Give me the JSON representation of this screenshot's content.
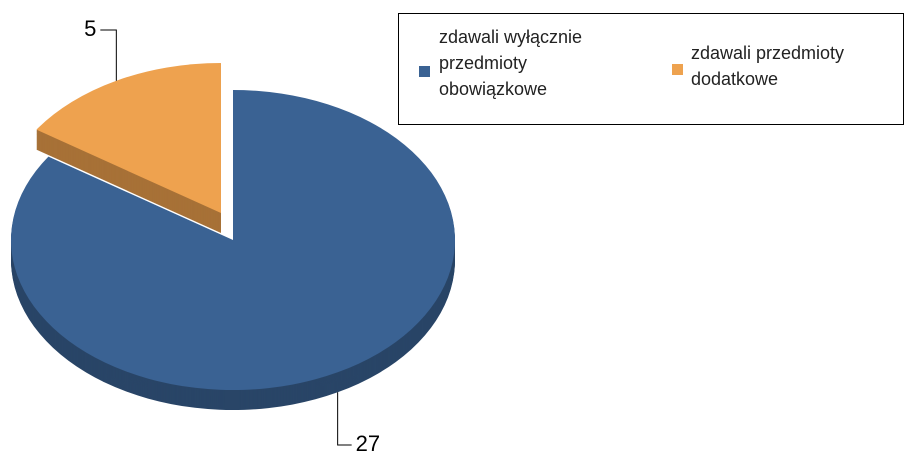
{
  "chart_data": {
    "type": "pie",
    "categories": [
      "zdawali wyłącznie przedmioty obowiązkowe",
      "zdawali przedmioty dodatkowe"
    ],
    "values": [
      27,
      5
    ],
    "colors": [
      "#3a6293",
      "#eea24f"
    ]
  }
}
